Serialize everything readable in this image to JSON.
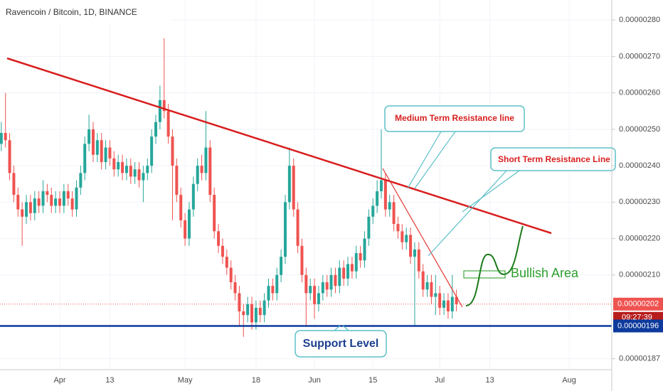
{
  "chart_data": {
    "type": "candlestick",
    "title": "Ravencoin / Bitcoin, 1D, BINANCE",
    "up_color": "#26a69a",
    "down_color": "#ef5350",
    "grid": true,
    "ylim": [
      1.84e-06,
      2.855e-06
    ],
    "yticks": [
      {
        "value": 2.8e-06,
        "label": "0.00000280"
      },
      {
        "value": 2.7e-06,
        "label": "0.00000270"
      },
      {
        "value": 2.6e-06,
        "label": "0.00000260"
      },
      {
        "value": 2.5e-06,
        "label": "0.00000250"
      },
      {
        "value": 2.4e-06,
        "label": "0.00000240"
      },
      {
        "value": 2.3e-06,
        "label": "0.00000230"
      },
      {
        "value": 2.2e-06,
        "label": "0.00000220"
      },
      {
        "value": 2.1e-06,
        "label": "0.00000210"
      },
      {
        "value": 1.87e-06,
        "label": "0.00000187"
      }
    ],
    "categories": [
      null,
      null,
      null,
      null,
      null,
      null,
      null,
      null,
      null,
      null,
      null,
      null,
      null,
      null,
      "Apr",
      null,
      null,
      null,
      null,
      null,
      null,
      null,
      null,
      null,
      null,
      null,
      "13",
      null,
      null,
      null,
      null,
      null,
      null,
      null,
      null,
      null,
      null,
      null,
      null,
      null,
      null,
      null,
      null,
      null,
      "May",
      null,
      null,
      null,
      null,
      null,
      null,
      null,
      null,
      null,
      null,
      null,
      null,
      null,
      null,
      null,
      null,
      "18",
      null,
      null,
      null,
      null,
      null,
      null,
      null,
      null,
      null,
      null,
      null,
      null,
      null,
      "Jun",
      null,
      null,
      null,
      null,
      null,
      null,
      null,
      null,
      null,
      null,
      null,
      null,
      null,
      "15",
      null,
      null,
      null,
      null,
      null,
      null,
      null,
      null,
      null,
      null,
      null,
      null,
      null,
      null,
      null,
      "Jul",
      null,
      null,
      null,
      null,
      null,
      null,
      null,
      null,
      null,
      null,
      null,
      "13",
      null,
      null,
      null,
      null,
      null,
      null,
      null,
      null,
      null,
      null,
      null,
      null,
      null,
      null,
      null,
      null,
      null,
      null,
      "Aug"
    ],
    "open": [
      2.46e-06,
      2.49e-06,
      2.47e-06,
      2.38e-06,
      2.32e-06,
      2.28e-06,
      2.26e-06,
      2.3e-06,
      2.27e-06,
      2.31e-06,
      2.29e-06,
      2.33e-06,
      2.32e-06,
      2.29e-06,
      2.31e-06,
      2.29e-06,
      2.33e-06,
      2.31e-06,
      2.28e-06,
      2.34e-06,
      2.38e-06,
      2.46e-06,
      2.5e-06,
      2.43e-06,
      2.47e-06,
      2.41e-06,
      2.45e-06,
      2.42e-06,
      2.39e-06,
      2.41e-06,
      2.38e-06,
      2.4e-06,
      2.37e-06,
      2.39e-06,
      2.36e-06,
      2.38e-06,
      2.4e-06,
      2.48e-06,
      2.52e-06,
      2.58e-06,
      2.55e-06,
      2.48e-06,
      2.4e-06,
      2.32e-06,
      2.25e-06,
      2.2e-06,
      2.28e-06,
      2.35e-06,
      2.4e-06,
      2.38e-06,
      2.45e-06,
      2.32e-06,
      2.22e-06,
      2.18e-06,
      2.15e-06,
      2.12e-06,
      2.08e-06,
      2.05e-06,
      2e-06,
      1.99e-06,
      2.02e-06,
      1.97e-06,
      2.01e-06,
      1.99e-06,
      2.03e-06,
      2.07e-06,
      2.05e-06,
      2.1e-06,
      2.15e-06,
      2.3e-06,
      2.4e-06,
      2.28e-06,
      2.18e-06,
      2.1e-06,
      2.05e-06,
      2.07e-06,
      2.02e-06,
      2.05e-06,
      2.08e-06,
      2.06e-06,
      2.1e-06,
      2.07e-06,
      2.12e-06,
      2.09e-06,
      2.13e-06,
      2.11e-06,
      2.16e-06,
      2.14e-06,
      2.2e-06,
      2.26e-06,
      2.29e-06,
      2.33e-06,
      2.36e-06,
      2.28e-06,
      2.3e-06,
      2.24e-06,
      2.22e-06,
      2.19e-06,
      2.21e-06,
      2.15e-06,
      2.17e-06,
      2.11e-06,
      2.06e-06,
      2.08e-06,
      2.04e-06,
      2.05e-06,
      2.01e-06,
      2.03e-06,
      2e-06,
      2.04e-06,
      null,
      null,
      null,
      null,
      null,
      null,
      null,
      null,
      null,
      null,
      null,
      null,
      null,
      null,
      null,
      null,
      null,
      null,
      null,
      null,
      null,
      null,
      null,
      null,
      null,
      null,
      null
    ],
    "high": [
      2.52e-06,
      2.6e-06,
      2.49e-06,
      2.4e-06,
      2.34e-06,
      2.3e-06,
      2.32e-06,
      2.32e-06,
      2.33e-06,
      2.33e-06,
      2.36e-06,
      2.35e-06,
      2.34e-06,
      2.33e-06,
      2.33e-06,
      2.35e-06,
      2.35e-06,
      2.33e-06,
      2.36e-06,
      2.4e-06,
      2.48e-06,
      2.54e-06,
      2.52e-06,
      2.49e-06,
      2.49e-06,
      2.47e-06,
      2.47e-06,
      2.44e-06,
      2.43e-06,
      2.43e-06,
      2.42e-06,
      2.42e-06,
      2.41e-06,
      2.41e-06,
      2.4e-06,
      2.42e-06,
      2.5e-06,
      2.54e-06,
      2.62e-06,
      2.75e-06,
      2.57e-06,
      2.5e-06,
      2.42e-06,
      2.34e-06,
      2.27e-06,
      2.3e-06,
      2.37e-06,
      2.42e-06,
      2.43e-06,
      2.55e-06,
      2.47e-06,
      2.34e-06,
      2.24e-06,
      2.2e-06,
      2.17e-06,
      2.14e-06,
      2.1e-06,
      2.07e-06,
      2.02e-06,
      2.04e-06,
      2.04e-06,
      2.03e-06,
      2.03e-06,
      2.05e-06,
      2.09e-06,
      2.09e-06,
      2.12e-06,
      2.17e-06,
      2.32e-06,
      2.45e-06,
      2.42e-06,
      2.3e-06,
      2.2e-06,
      2.12e-06,
      2.09e-06,
      2.09e-06,
      2.07e-06,
      2.1e-06,
      2.1e-06,
      2.12e-06,
      2.12e-06,
      2.14e-06,
      2.14e-06,
      2.15e-06,
      2.15e-06,
      2.18e-06,
      2.18e-06,
      2.22e-06,
      2.28e-06,
      2.31e-06,
      2.36e-06,
      2.5e-06,
      2.38e-06,
      2.32e-06,
      2.32e-06,
      2.26e-06,
      2.24e-06,
      2.23e-06,
      2.23e-06,
      2.19e-06,
      2.19e-06,
      2.13e-06,
      2.1e-06,
      2.1e-06,
      2.1e-06,
      2.07e-06,
      2.05e-06,
      2.05e-06,
      2.1e-06,
      2.06e-06,
      null,
      null,
      null,
      null,
      null,
      null,
      null,
      null,
      null,
      null,
      null,
      null,
      null,
      null,
      null,
      null,
      null,
      null,
      null,
      null,
      null,
      null,
      null,
      null,
      null,
      null,
      null
    ],
    "low": [
      2.44e-06,
      2.45e-06,
      2.36e-06,
      2.3e-06,
      2.26e-06,
      2.18e-06,
      2.24e-06,
      2.25e-06,
      2.25e-06,
      2.27e-06,
      2.27e-06,
      2.3e-06,
      2.27e-06,
      2.27e-06,
      2.27e-06,
      2.27e-06,
      2.29e-06,
      2.26e-06,
      2.26e-06,
      2.32e-06,
      2.36e-06,
      2.44e-06,
      2.41e-06,
      2.41e-06,
      2.39e-06,
      2.39e-06,
      2.4e-06,
      2.37e-06,
      2.37e-06,
      2.36e-06,
      2.36e-06,
      2.35e-06,
      2.35e-06,
      2.34e-06,
      2.3e-06,
      2.36e-06,
      2.38e-06,
      2.46e-06,
      2.5e-06,
      2.53e-06,
      2.46e-06,
      2.25e-06,
      2.3e-06,
      2.23e-06,
      2.18e-06,
      2.18e-06,
      2.26e-06,
      2.33e-06,
      2.36e-06,
      2.36e-06,
      2.3e-06,
      2.2e-06,
      2.16e-06,
      2.13e-06,
      2.1e-06,
      2.06e-06,
      2.03e-06,
      1.96e-06,
      1.93e-06,
      1.97e-06,
      1.95e-06,
      1.95e-06,
      1.97e-06,
      1.97e-06,
      2.01e-06,
      2.03e-06,
      2.03e-06,
      2.08e-06,
      2.13e-06,
      2.28e-06,
      2.26e-06,
      2.16e-06,
      2.08e-06,
      1.96e-06,
      2.03e-06,
      1.98e-06,
      2e-06,
      2.03e-06,
      2.04e-06,
      2.04e-06,
      2.05e-06,
      2.05e-06,
      2.07e-06,
      2.07e-06,
      2.09e-06,
      2.09e-06,
      2.12e-06,
      2.12e-06,
      2.18e-06,
      2.24e-06,
      2.27e-06,
      2.31e-06,
      2.26e-06,
      2.26e-06,
      2.22e-06,
      2.2e-06,
      2.17e-06,
      2.17e-06,
      2.13e-06,
      1.96e-06,
      2.09e-06,
      2.04e-06,
      2.04e-06,
      2.02e-06,
      1.99e-06,
      1.99e-06,
      1.99e-06,
      1.98e-06,
      1.98e-06,
      2e-06,
      null,
      null,
      null,
      null,
      null,
      null,
      null,
      null,
      null,
      null,
      null,
      null,
      null,
      null,
      null,
      null,
      null,
      null,
      null,
      null,
      null,
      null,
      null,
      null,
      null,
      null,
      null
    ],
    "close": [
      2.49e-06,
      2.47e-06,
      2.38e-06,
      2.32e-06,
      2.28e-06,
      2.26e-06,
      2.3e-06,
      2.27e-06,
      2.31e-06,
      2.29e-06,
      2.33e-06,
      2.32e-06,
      2.29e-06,
      2.31e-06,
      2.29e-06,
      2.33e-06,
      2.31e-06,
      2.28e-06,
      2.34e-06,
      2.38e-06,
      2.46e-06,
      2.5e-06,
      2.43e-06,
      2.47e-06,
      2.41e-06,
      2.45e-06,
      2.42e-06,
      2.39e-06,
      2.41e-06,
      2.38e-06,
      2.4e-06,
      2.37e-06,
      2.39e-06,
      2.36e-06,
      2.38e-06,
      2.4e-06,
      2.48e-06,
      2.52e-06,
      2.58e-06,
      2.55e-06,
      2.48e-06,
      2.4e-06,
      2.32e-06,
      2.25e-06,
      2.2e-06,
      2.28e-06,
      2.35e-06,
      2.4e-06,
      2.38e-06,
      2.45e-06,
      2.32e-06,
      2.22e-06,
      2.18e-06,
      2.15e-06,
      2.12e-06,
      2.08e-06,
      2.05e-06,
      2e-06,
      1.99e-06,
      2.02e-06,
      1.97e-06,
      2.01e-06,
      1.99e-06,
      2.03e-06,
      2.07e-06,
      2.05e-06,
      2.1e-06,
      2.15e-06,
      2.3e-06,
      2.4e-06,
      2.28e-06,
      2.18e-06,
      2.1e-06,
      2.05e-06,
      2.07e-06,
      2.02e-06,
      2.05e-06,
      2.08e-06,
      2.06e-06,
      2.1e-06,
      2.07e-06,
      2.12e-06,
      2.09e-06,
      2.13e-06,
      2.11e-06,
      2.16e-06,
      2.14e-06,
      2.2e-06,
      2.26e-06,
      2.29e-06,
      2.33e-06,
      2.36e-06,
      2.28e-06,
      2.3e-06,
      2.24e-06,
      2.22e-06,
      2.19e-06,
      2.21e-06,
      2.15e-06,
      2.17e-06,
      2.11e-06,
      2.06e-06,
      2.08e-06,
      2.04e-06,
      2.05e-06,
      2.01e-06,
      2.03e-06,
      2e-06,
      2.04e-06,
      2.02e-06,
      null,
      null,
      null,
      null,
      null,
      null,
      null,
      null,
      null,
      null,
      null,
      null,
      null,
      null,
      null,
      null,
      null,
      null,
      null,
      null,
      null,
      null,
      null,
      null,
      null,
      null,
      null
    ],
    "price_labels": [
      {
        "value": 2.02e-06,
        "label": "0.00000202",
        "color": "#ef5350"
      },
      {
        "value": 1.96e-06,
        "label": "0.00000196",
        "color": "#0d3a9c"
      }
    ],
    "countdown": "09:27:39",
    "annotations": {
      "medium": "Medium Term Resistance line",
      "short": "Short Term Resistance Line",
      "bullish": "Bullish Area",
      "support": "Support Level"
    }
  }
}
